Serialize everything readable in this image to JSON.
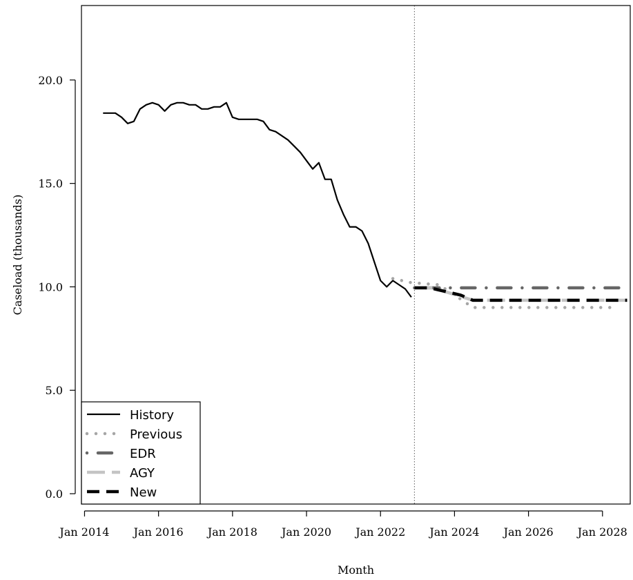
{
  "chart_data": {
    "type": "line",
    "xlabel": "Month",
    "ylabel": "Caseload (thousands)",
    "xlim": [
      "2013-12",
      "2028-10"
    ],
    "ylim": [
      -0.5,
      23.6
    ],
    "x_ticks": [
      "Jan 2014",
      "Jan 2016",
      "Jan 2018",
      "Jan 2020",
      "Jan 2022",
      "Jan 2024",
      "Jan 2026",
      "Jan 2028"
    ],
    "y_ticks": [
      "0.0",
      "5.0",
      "10.0",
      "15.0",
      "20.0"
    ],
    "forecast_start": "2022-12",
    "grid": false,
    "legend_position": "bottom-left",
    "series": [
      {
        "name": "History",
        "style": "solid",
        "color": "#000000",
        "points": [
          [
            "2014-07",
            18.4
          ],
          [
            "2014-09",
            18.4
          ],
          [
            "2014-11",
            18.4
          ],
          [
            "2015-01",
            18.2
          ],
          [
            "2015-03",
            17.9
          ],
          [
            "2015-05",
            18.0
          ],
          [
            "2015-07",
            18.6
          ],
          [
            "2015-09",
            18.8
          ],
          [
            "2015-11",
            18.9
          ],
          [
            "2016-01",
            18.8
          ],
          [
            "2016-03",
            18.5
          ],
          [
            "2016-05",
            18.8
          ],
          [
            "2016-07",
            18.9
          ],
          [
            "2016-09",
            18.9
          ],
          [
            "2016-11",
            18.8
          ],
          [
            "2017-01",
            18.8
          ],
          [
            "2017-03",
            18.6
          ],
          [
            "2017-05",
            18.6
          ],
          [
            "2017-07",
            18.7
          ],
          [
            "2017-09",
            18.7
          ],
          [
            "2017-11",
            18.9
          ],
          [
            "2018-01",
            18.2
          ],
          [
            "2018-03",
            18.1
          ],
          [
            "2018-05",
            18.1
          ],
          [
            "2018-07",
            18.1
          ],
          [
            "2018-09",
            18.1
          ],
          [
            "2018-11",
            18.0
          ],
          [
            "2019-01",
            17.6
          ],
          [
            "2019-03",
            17.5
          ],
          [
            "2019-05",
            17.3
          ],
          [
            "2019-07",
            17.1
          ],
          [
            "2019-09",
            16.8
          ],
          [
            "2019-11",
            16.5
          ],
          [
            "2020-01",
            16.1
          ],
          [
            "2020-03",
            15.7
          ],
          [
            "2020-05",
            16.0
          ],
          [
            "2020-07",
            15.2
          ],
          [
            "2020-09",
            15.2
          ],
          [
            "2020-11",
            14.2
          ],
          [
            "2021-01",
            13.5
          ],
          [
            "2021-03",
            12.9
          ],
          [
            "2021-05",
            12.9
          ],
          [
            "2021-07",
            12.7
          ],
          [
            "2021-09",
            12.1
          ],
          [
            "2021-11",
            11.2
          ],
          [
            "2022-01",
            10.3
          ],
          [
            "2022-03",
            10.0
          ],
          [
            "2022-05",
            10.3
          ],
          [
            "2022-07",
            10.1
          ],
          [
            "2022-09",
            9.9
          ],
          [
            "2022-11",
            9.5
          ]
        ]
      },
      {
        "name": "Previous",
        "style": "dotted",
        "color": "#a6a6a6",
        "points": [
          [
            "2022-05",
            10.4
          ],
          [
            "2022-11",
            10.2
          ],
          [
            "2023-08",
            10.1
          ],
          [
            "2024-03",
            9.4
          ],
          [
            "2024-07",
            9.0
          ],
          [
            "2025-07",
            9.0
          ],
          [
            "2026-07",
            9.0
          ],
          [
            "2027-07",
            9.0
          ],
          [
            "2028-04",
            9.0
          ]
        ]
      },
      {
        "name": "EDR",
        "style": "dash-dot",
        "color": "#666666",
        "points": [
          [
            "2022-12",
            9.95
          ],
          [
            "2024-07",
            9.95
          ],
          [
            "2025-07",
            9.95
          ],
          [
            "2026-07",
            9.95
          ],
          [
            "2027-07",
            9.95
          ],
          [
            "2028-09",
            9.95
          ]
        ]
      },
      {
        "name": "AGY",
        "style": "long-dash",
        "color": "#c4c4c4",
        "points": [
          [
            "2022-12",
            9.95
          ],
          [
            "2023-06",
            9.95
          ],
          [
            "2024-07",
            9.35
          ],
          [
            "2025-07",
            9.35
          ],
          [
            "2026-07",
            9.35
          ],
          [
            "2027-07",
            9.35
          ],
          [
            "2028-09",
            9.35
          ]
        ]
      },
      {
        "name": "New",
        "style": "dashed",
        "color": "#000000",
        "points": [
          [
            "2022-12",
            9.95
          ],
          [
            "2023-05",
            9.95
          ],
          [
            "2024-03",
            9.6
          ],
          [
            "2024-07",
            9.35
          ],
          [
            "2025-07",
            9.35
          ],
          [
            "2026-07",
            9.35
          ],
          [
            "2027-07",
            9.35
          ],
          [
            "2028-09",
            9.35
          ]
        ]
      }
    ]
  }
}
